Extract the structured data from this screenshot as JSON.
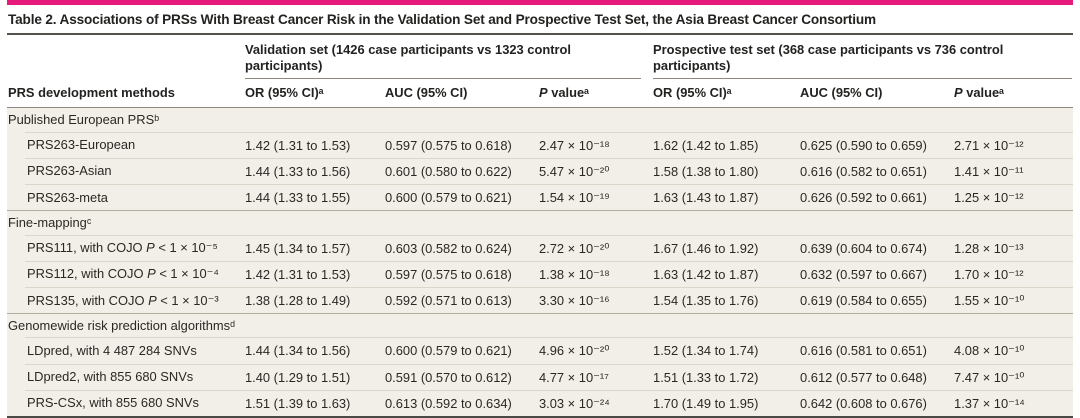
{
  "colors": {
    "accent": "#e61a7b",
    "body_row_bg": "#f2efe8",
    "heavy_rule": "#55524c",
    "header_rule": "#8f8a7d"
  },
  "title": "Table 2. Associations of PRSs With Breast Cancer Risk in the Validation Set and Prospective Test Set, the Asia Breast Cancer Consortium",
  "table": {
    "methods_header": "PRS development methods",
    "group_validation": "Validation set (1426 case participants vs 1323 control participants)",
    "group_test": "Prospective test set (368 case participants vs 736 control participants)",
    "sub": {
      "or": "OR (95% CI)ᵃ",
      "auc": "AUC (95% CI)",
      "p_italic": "P",
      "p_rest": " valueᵃ"
    },
    "rows": [
      {
        "type": "section",
        "label": "Published European PRSᵇ"
      },
      {
        "type": "data",
        "pre": "PRS263-European",
        "it": "",
        "post": "",
        "cells": [
          "1.42 (1.31 to 1.53)",
          "0.597 (0.575 to 0.618)",
          "2.47 × 10⁻¹⁸",
          "1.62 (1.42 to 1.85)",
          "0.625 (0.590 to 0.659)",
          "2.71 × 10⁻¹²"
        ]
      },
      {
        "type": "data",
        "pre": "PRS263-Asian",
        "it": "",
        "post": "",
        "cells": [
          "1.44 (1.33 to 1.56)",
          "0.601 (0.580 to 0.622)",
          "5.47 × 10⁻²⁰",
          "1.58 (1.38 to 1.80)",
          "0.616 (0.582 to 0.651)",
          "1.41 × 10⁻¹¹"
        ]
      },
      {
        "type": "data",
        "pre": "PRS263-meta",
        "it": "",
        "post": "",
        "cells": [
          "1.44 (1.33 to 1.55)",
          "0.600 (0.579 to 0.621)",
          "1.54 × 10⁻¹⁹",
          "1.63 (1.43 to 1.87)",
          "0.626 (0.592 to 0.661)",
          "1.25 × 10⁻¹²"
        ]
      },
      {
        "type": "section",
        "label": "Fine-mappingᶜ"
      },
      {
        "type": "data",
        "pre": "PRS111, with COJO ",
        "it": "P",
        "post": " < 1 × 10⁻⁵",
        "cells": [
          "1.45 (1.34 to 1.57)",
          "0.603 (0.582 to 0.624)",
          "2.72 × 10⁻²⁰",
          "1.67 (1.46 to 1.92)",
          "0.639 (0.604 to 0.674)",
          "1.28 × 10⁻¹³"
        ]
      },
      {
        "type": "data",
        "pre": "PRS112, with COJO ",
        "it": "P",
        "post": " < 1 × 10⁻⁴",
        "cells": [
          "1.42 (1.31 to 1.53)",
          "0.597 (0.575 to 0.618)",
          "1.38 × 10⁻¹⁸",
          "1.63 (1.42 to 1.87)",
          "0.632 (0.597 to 0.667)",
          "1.70 × 10⁻¹²"
        ]
      },
      {
        "type": "data",
        "pre": "PRS135, with COJO ",
        "it": "P",
        "post": " < 1 × 10⁻³",
        "cells": [
          "1.38 (1.28 to 1.49)",
          "0.592 (0.571 to 0.613)",
          "3.30 × 10⁻¹⁶",
          "1.54 (1.35 to 1.76)",
          "0.619 (0.584 to 0.655)",
          "1.55 × 10⁻¹⁰"
        ]
      },
      {
        "type": "section",
        "label": "Genomewide risk prediction algorithmsᵈ"
      },
      {
        "type": "data",
        "pre": "LDpred, with 4 487 284 SNVs",
        "it": "",
        "post": "",
        "cells": [
          "1.44 (1.34 to 1.56)",
          "0.600 (0.579 to 0.621)",
          "4.96 × 10⁻²⁰",
          "1.52 (1.34 to 1.74)",
          "0.616 (0.581 to 0.651)",
          "4.08 × 10⁻¹⁰"
        ]
      },
      {
        "type": "data",
        "pre": "LDpred2, with 855 680 SNVs",
        "it": "",
        "post": "",
        "cells": [
          "1.40 (1.29 to 1.51)",
          "0.591 (0.570 to 0.612)",
          "4.77 × 10⁻¹⁷",
          "1.51 (1.33 to 1.72)",
          "0.612 (0.577 to 0.648)",
          "7.47 × 10⁻¹⁰"
        ]
      },
      {
        "type": "data",
        "pre": "PRS-CSx, with 855 680 SNVs",
        "it": "",
        "post": "",
        "cells": [
          "1.51 (1.39 to 1.63)",
          "0.613 (0.592 to 0.634)",
          "3.03 × 10⁻²⁴",
          "1.70 (1.49 to 1.95)",
          "0.642 (0.608 to 0.676)",
          "1.37 × 10⁻¹⁴"
        ]
      }
    ]
  }
}
